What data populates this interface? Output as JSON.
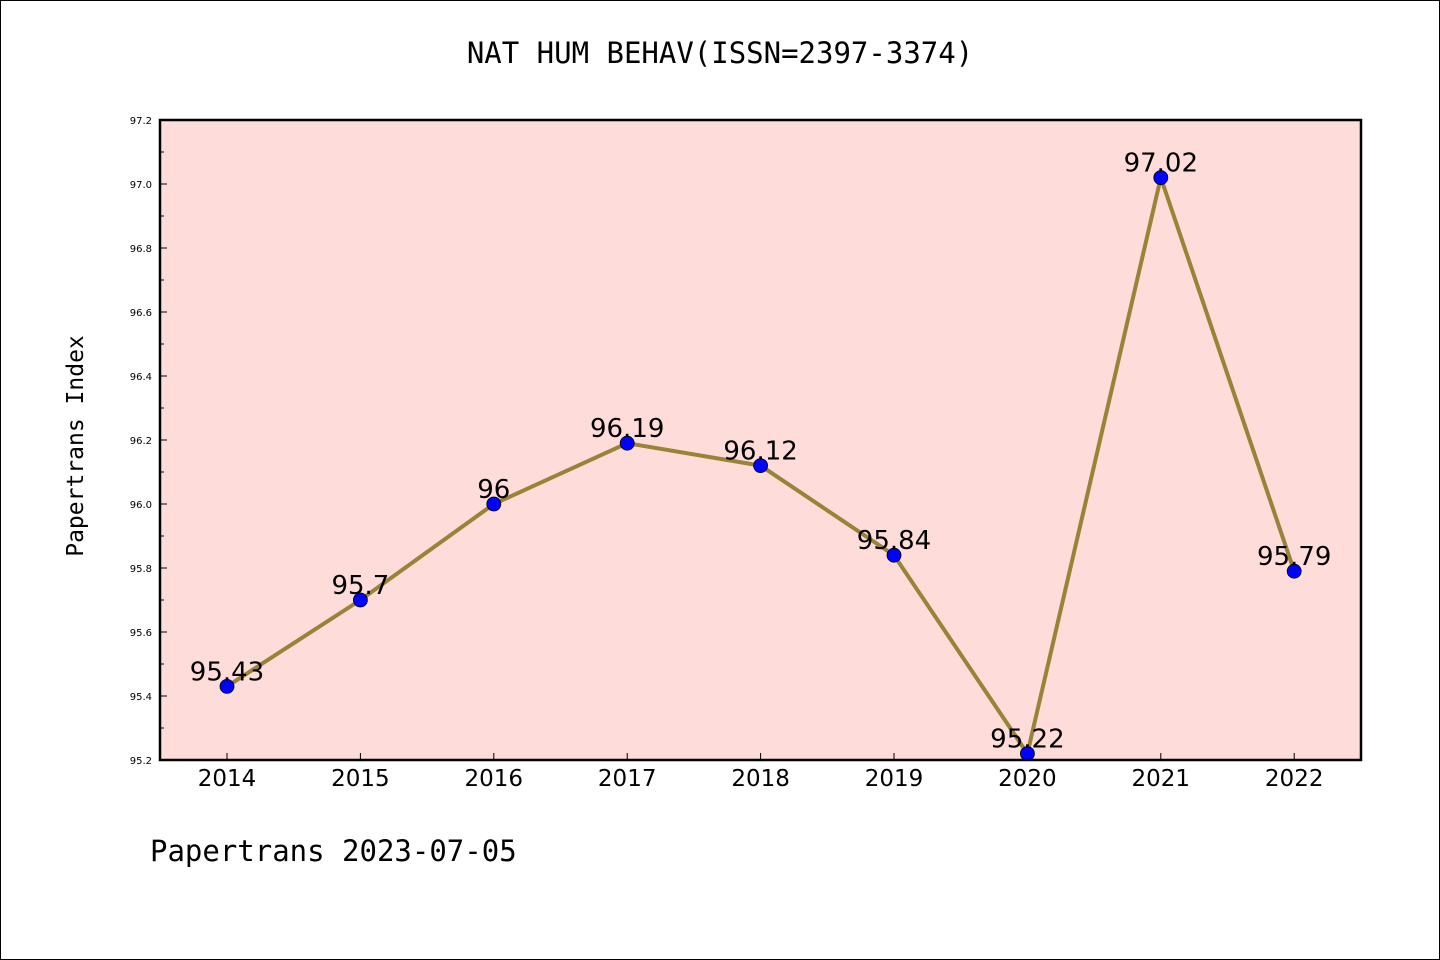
{
  "title": "NAT HUM BEHAV(ISSN=2397-3374)",
  "footer": "Papertrans 2023-07-05",
  "colors": {
    "plot_background": "#fddcda",
    "line": "#9a8236",
    "marker": "#0000ff"
  },
  "chart_data": {
    "type": "line",
    "title": "NAT HUM BEHAV(ISSN=2397-3374)",
    "xlabel": "",
    "ylabel": "Papertrans Index",
    "categories": [
      "2014",
      "2015",
      "2016",
      "2017",
      "2018",
      "2019",
      "2020",
      "2021",
      "2022"
    ],
    "series": [
      {
        "values": [
          95.43,
          95.7,
          96,
          96.19,
          96.12,
          95.84,
          95.22,
          97.02,
          95.79
        ],
        "labels": [
          "95.43",
          "95.7",
          "96",
          "96.19",
          "96.12",
          "95.84",
          "95.22",
          "97.02",
          "95.79"
        ]
      }
    ],
    "ylim": [
      95.2,
      97.2
    ],
    "yticks": [
      "95.2",
      "95.4",
      "95.6",
      "95.8",
      "96.0",
      "96.2",
      "96.4",
      "96.6",
      "96.8",
      "97.0",
      "97.2"
    ],
    "grid": false,
    "legend": "none"
  }
}
